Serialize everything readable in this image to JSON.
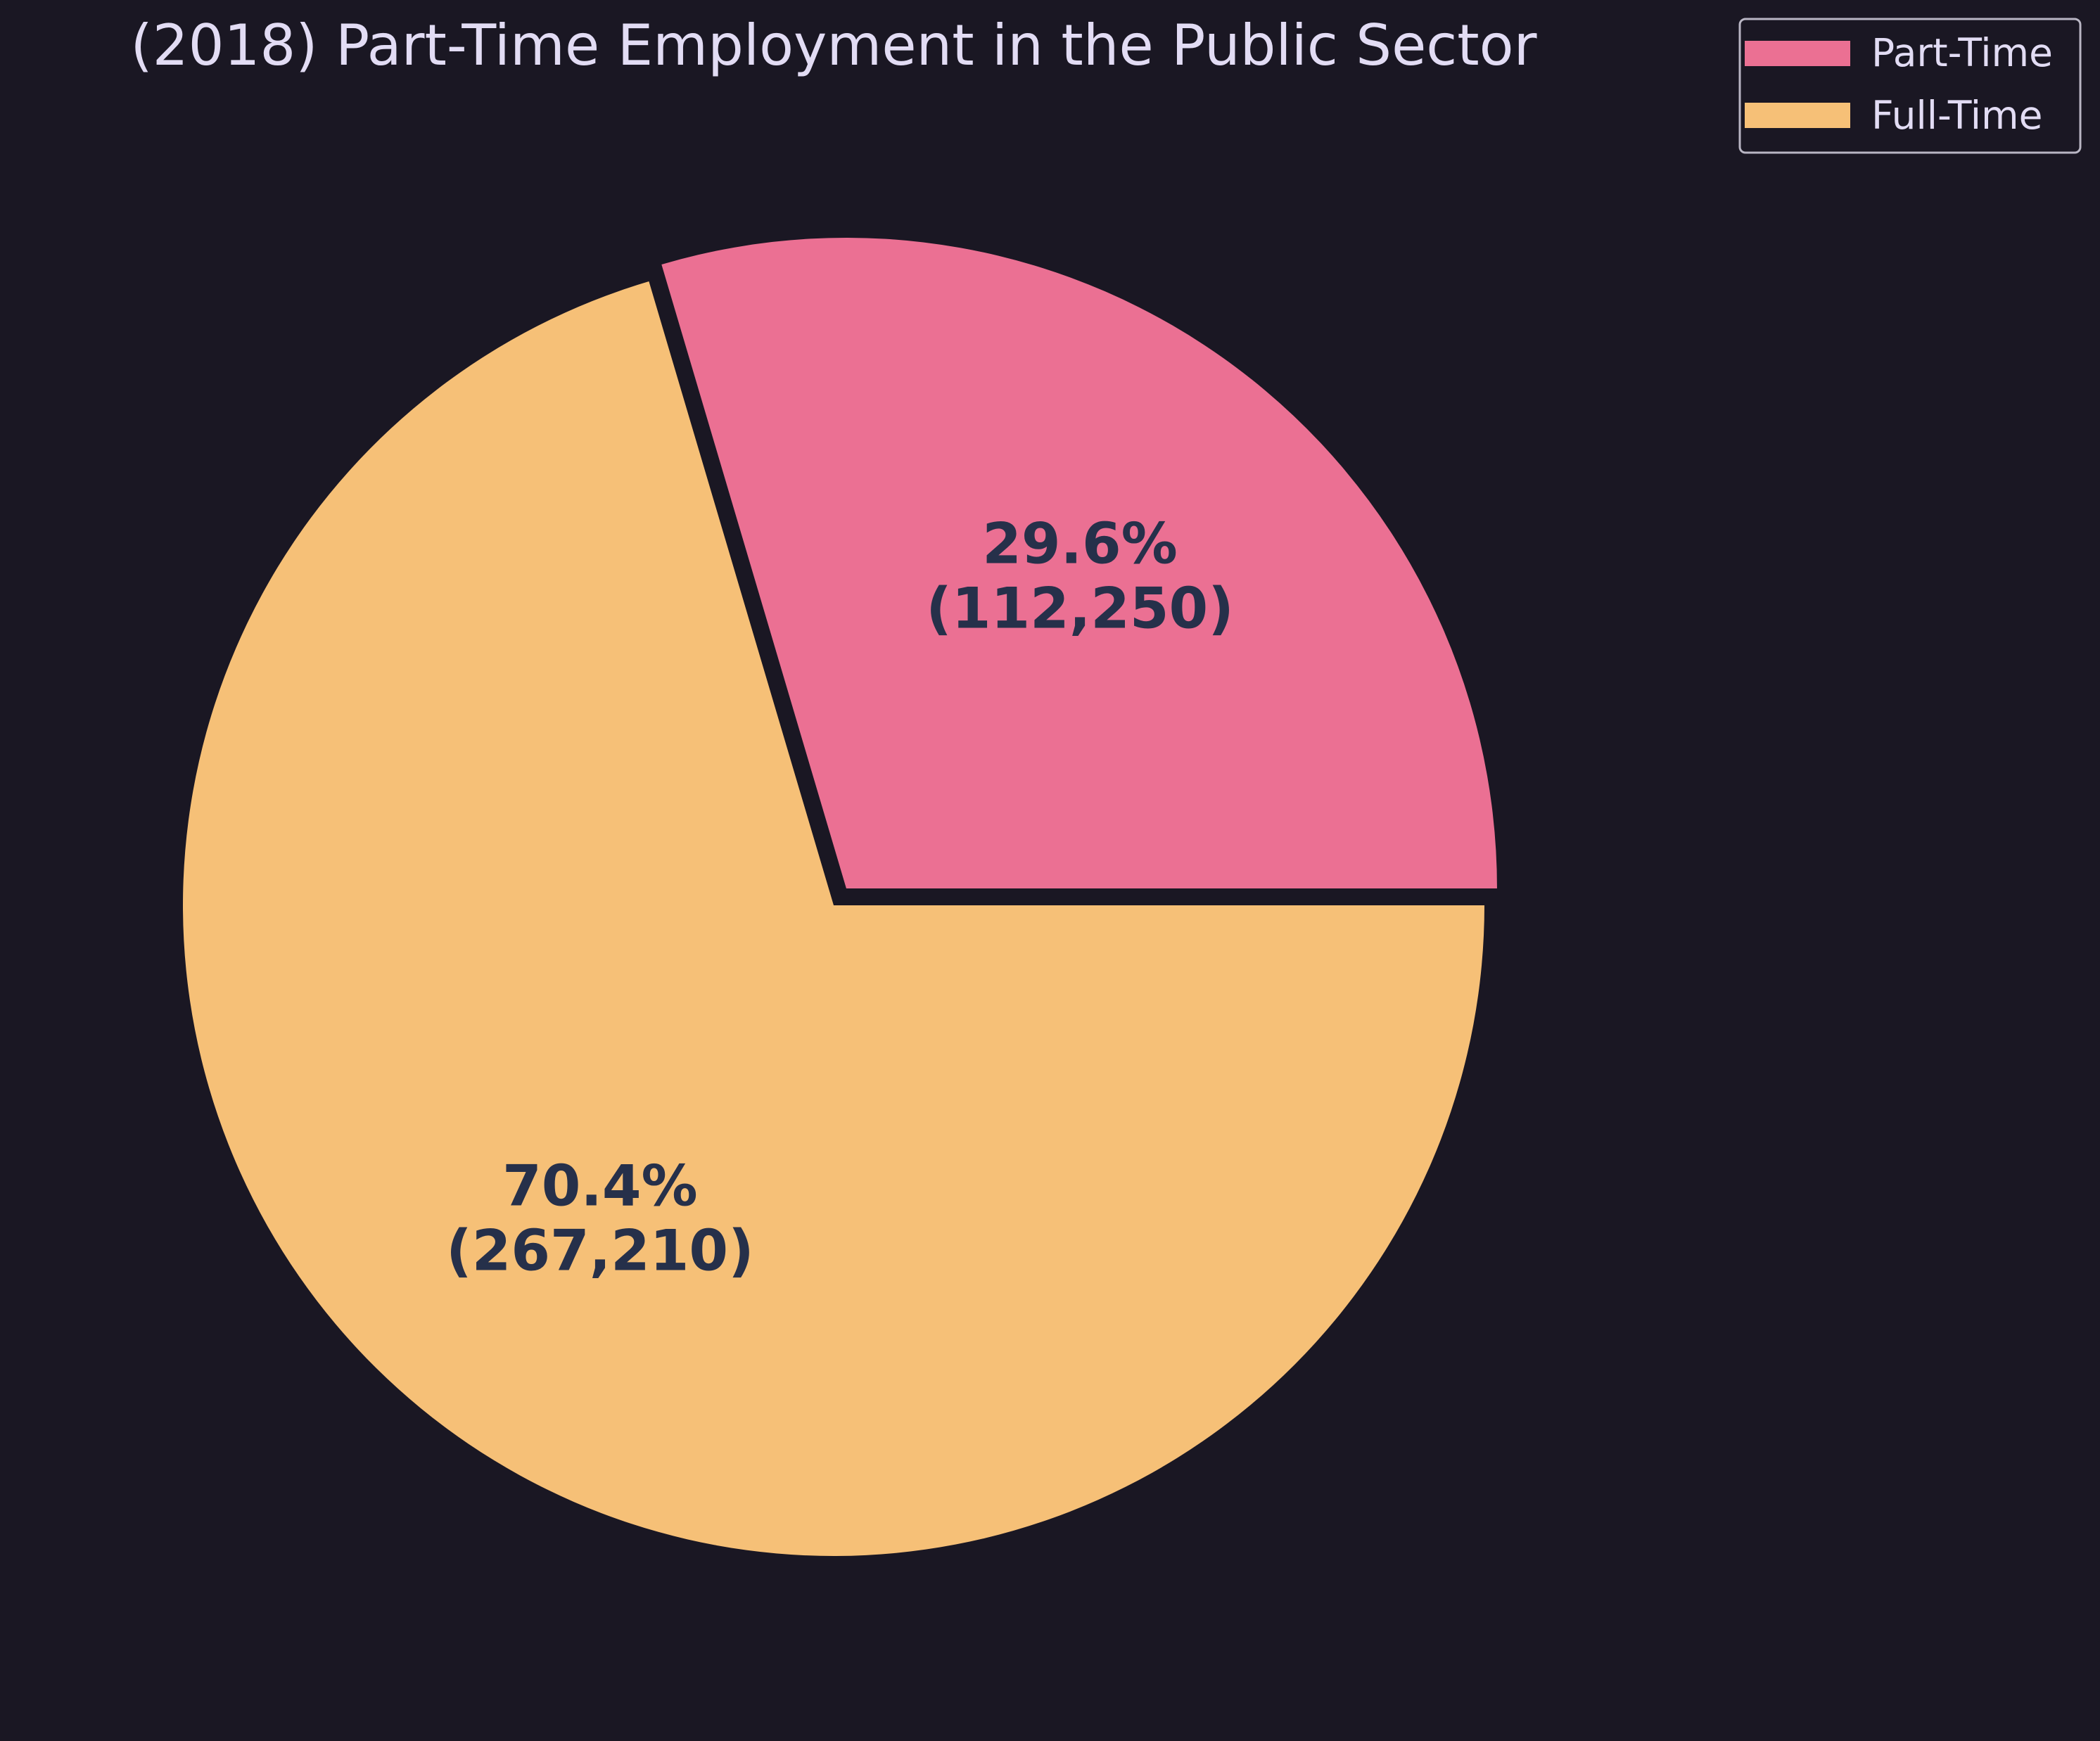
{
  "chart_data": {
    "type": "pie",
    "title": "(2018) Part-Time Employment in the Public Sector",
    "slices": [
      {
        "label": "Part-Time",
        "value": 112250,
        "percent_label": "29.6%",
        "value_label": "(112,250)",
        "color": "#eb7093",
        "exploded": true
      },
      {
        "label": "Full-Time",
        "value": 267210,
        "percent_label": "70.4%",
        "value_label": "(267,210)",
        "color": "#f6c077",
        "exploded": false
      }
    ],
    "start_angle_deg": 0,
    "direction": "counterclockwise",
    "legend_placement": "top-right",
    "background": "#1a1723",
    "text_color": "#e2dcf4",
    "label_color": "#26304a"
  }
}
